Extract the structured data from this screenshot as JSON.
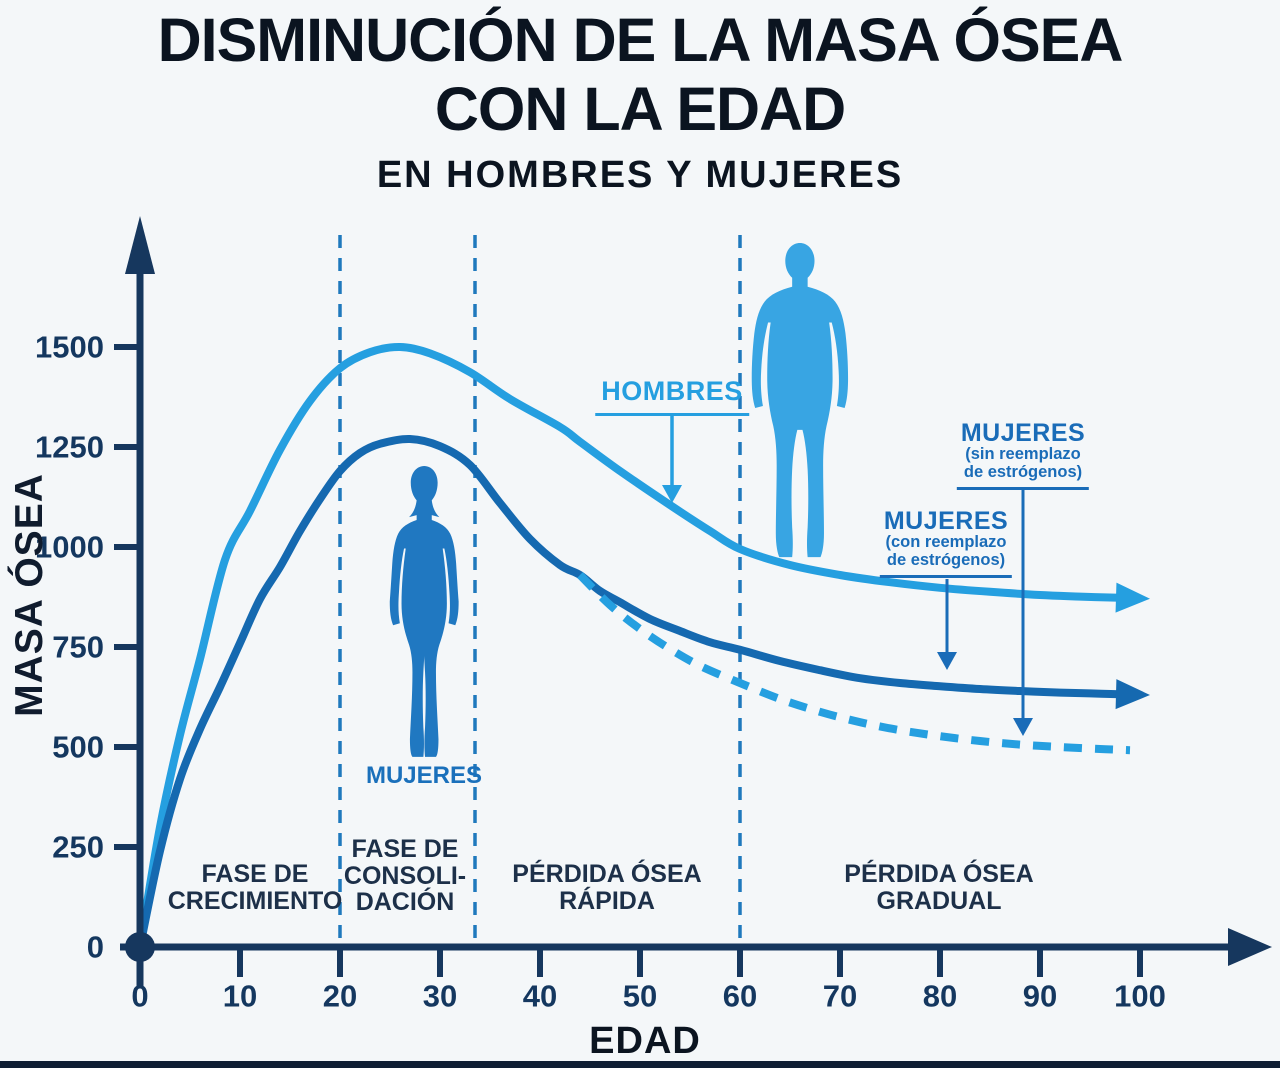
{
  "title": {
    "line1": "DISMINUCIÓN DE LA MASA ÓSEA",
    "line2": "CON LA EDAD",
    "subtitle": "EN HOMBRES Y MUJERES"
  },
  "axes": {
    "x_label": "EDAD",
    "y_label": "MASA ÓSEA",
    "x_ticks": [
      0,
      10,
      20,
      30,
      40,
      50,
      60,
      70,
      80,
      90,
      100
    ],
    "y_ticks": [
      0,
      250,
      500,
      750,
      1000,
      1250,
      1500
    ]
  },
  "phases": [
    {
      "lines": [
        "FASE DE",
        "CRECIMIENTO"
      ]
    },
    {
      "lines": [
        "FASE DE",
        "CONSOLI-",
        "DACIÓN"
      ]
    },
    {
      "lines": [
        "PÉRDIDA ÓSEA",
        "RÁPIDA"
      ]
    },
    {
      "lines": [
        "PÉRDIDA ÓSEA",
        "GRADUAL"
      ]
    }
  ],
  "series_labels": {
    "men": {
      "title": "HOMBRES"
    },
    "women_hrt": {
      "title": "MUJERES",
      "sub1": "(con reemplazo",
      "sub2": "de estrógenos)"
    },
    "women_no_hrt": {
      "title": "MUJERES",
      "sub1": "(sin reemplazo",
      "sub2": "de estrógenos)"
    }
  },
  "figures": {
    "woman_caption": "MUJERES"
  },
  "colors": {
    "light_blue": "#259fe0",
    "dark_blue": "#1569b0",
    "label_blue": "#1a6cb8",
    "navy": "#16375e",
    "tick_text": "#14375f",
    "man_fill": "#38a5e3",
    "woman_fill": "#2078c1",
    "divider": "#1f79bd",
    "background": "#f4f7f9",
    "bottom_bar": "#0e1d33"
  },
  "chart_data": {
    "type": "line",
    "title": "DISMINUCIÓN DE LA MASA ÓSEA CON LA EDAD",
    "subtitle": "EN HOMBRES Y MUJERES",
    "xlabel": "EDAD",
    "ylabel": "MASA ÓSEA",
    "xlim": [
      0,
      100
    ],
    "ylim": [
      0,
      1500
    ],
    "x_ticks": [
      0,
      10,
      20,
      30,
      40,
      50,
      60,
      70,
      80,
      90,
      100
    ],
    "y_ticks": [
      0,
      250,
      500,
      750,
      1000,
      1250,
      1500
    ],
    "grid": false,
    "legend_position": "inline-arrow-labels",
    "phase_dividers_x": [
      20,
      33.5,
      60
    ],
    "annotations": [
      "FASE DE CRECIMIENTO",
      "FASE DE CONSOLI-DACIÓN",
      "PÉRDIDA ÓSEA RÁPIDA",
      "PÉRDIDA ÓSEA GRADUAL"
    ],
    "series": [
      {
        "name": "HOMBRES",
        "style": "solid",
        "color": "#259fe0",
        "end_arrow": true,
        "points": [
          [
            0,
            0
          ],
          [
            2,
            300
          ],
          [
            4,
            530
          ],
          [
            6,
            720
          ],
          [
            8.5,
            968
          ],
          [
            11,
            1090
          ],
          [
            14,
            1243
          ],
          [
            17,
            1365
          ],
          [
            20,
            1447
          ],
          [
            23,
            1487
          ],
          [
            26,
            1500
          ],
          [
            29,
            1484
          ],
          [
            33,
            1437
          ],
          [
            37,
            1370
          ],
          [
            42,
            1300
          ],
          [
            44,
            1263
          ],
          [
            48,
            1190
          ],
          [
            53,
            1105
          ],
          [
            57,
            1040
          ],
          [
            60,
            995
          ],
          [
            65,
            955
          ],
          [
            70,
            930
          ],
          [
            75,
            912
          ],
          [
            80,
            898
          ],
          [
            85,
            888
          ],
          [
            90,
            880
          ],
          [
            94,
            876
          ],
          [
            98,
            873
          ]
        ]
      },
      {
        "name": "MUJERES (con reemplazo de estrógenos)",
        "style": "solid",
        "color": "#1569b0",
        "end_arrow": true,
        "points": [
          [
            0,
            0
          ],
          [
            2,
            240
          ],
          [
            4,
            420
          ],
          [
            6,
            545
          ],
          [
            8,
            650
          ],
          [
            10,
            760
          ],
          [
            12,
            870
          ],
          [
            14,
            950
          ],
          [
            16,
            1040
          ],
          [
            18,
            1120
          ],
          [
            20,
            1190
          ],
          [
            22,
            1235
          ],
          [
            24,
            1258
          ],
          [
            27,
            1270
          ],
          [
            30,
            1252
          ],
          [
            33,
            1205
          ],
          [
            36,
            1110
          ],
          [
            39,
            1020
          ],
          [
            42,
            955
          ],
          [
            44,
            930
          ],
          [
            46,
            890
          ],
          [
            48,
            862
          ],
          [
            51,
            820
          ],
          [
            54,
            790
          ],
          [
            57,
            762
          ],
          [
            60,
            743
          ],
          [
            64,
            715
          ],
          [
            68,
            692
          ],
          [
            72,
            672
          ],
          [
            76,
            660
          ],
          [
            80,
            652
          ],
          [
            84,
            645
          ],
          [
            88,
            640
          ],
          [
            92,
            636
          ],
          [
            95,
            634
          ],
          [
            98,
            632
          ]
        ]
      },
      {
        "name": "MUJERES (sin reemplazo de estrógenos)",
        "style": "dashed",
        "color": "#259fe0",
        "end_arrow": false,
        "points": [
          [
            44,
            930
          ],
          [
            47,
            855
          ],
          [
            50,
            795
          ],
          [
            53,
            745
          ],
          [
            56,
            703
          ],
          [
            60,
            660
          ],
          [
            64,
            620
          ],
          [
            68,
            588
          ],
          [
            72,
            562
          ],
          [
            76,
            542
          ],
          [
            80,
            527
          ],
          [
            84,
            515
          ],
          [
            88,
            506
          ],
          [
            92,
            500
          ],
          [
            96,
            495
          ],
          [
            99,
            492
          ]
        ]
      }
    ]
  }
}
